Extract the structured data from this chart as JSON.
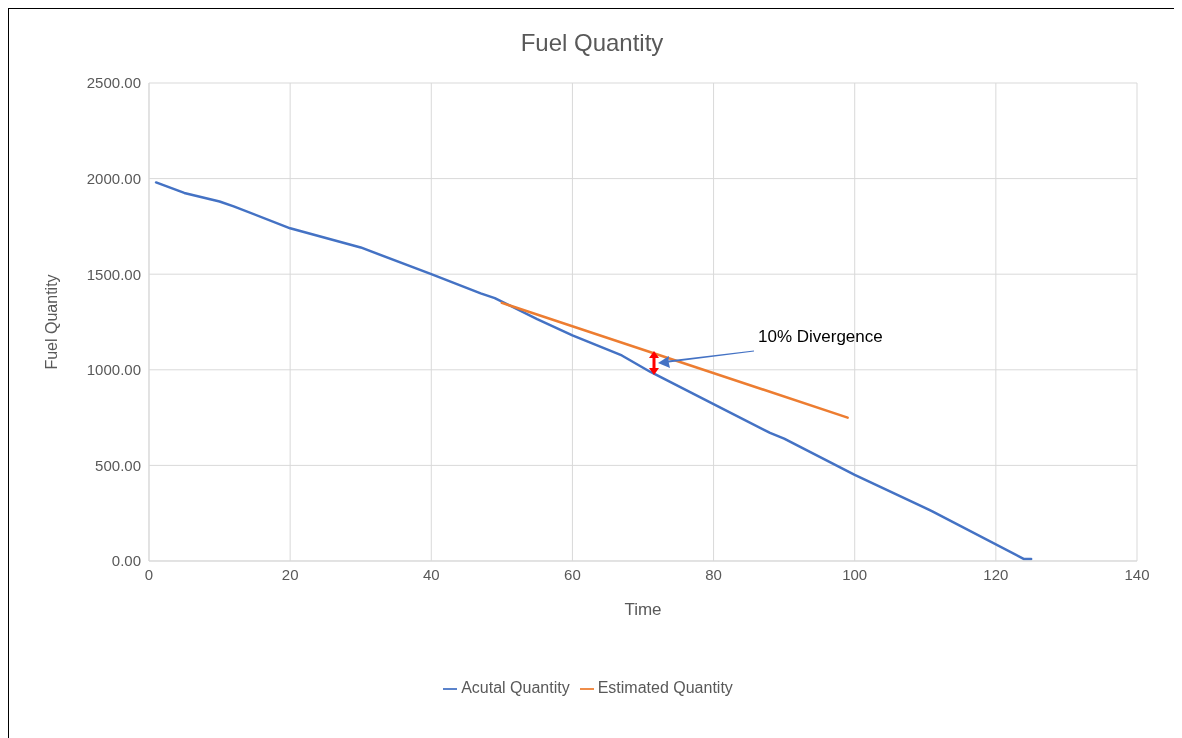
{
  "chart_data": {
    "type": "line",
    "title": "Fuel Quantity",
    "xlabel": "Time",
    "ylabel": "Fuel Quantity",
    "xlim": [
      0,
      140
    ],
    "xticks": [
      0,
      20,
      40,
      60,
      80,
      100,
      120,
      140
    ],
    "ylim": [
      0,
      2500
    ],
    "yticks": [
      {
        "value": 0,
        "label": "0.00"
      },
      {
        "value": 500,
        "label": "500.00"
      },
      {
        "value": 1000,
        "label": "1000.00"
      },
      {
        "value": 1500,
        "label": "1500.00"
      },
      {
        "value": 2000,
        "label": "2000.00"
      },
      {
        "value": 2500,
        "label": "2500.00"
      }
    ],
    "grid": true,
    "legend": "bottom",
    "series": [
      {
        "name": "Acutal Quantity",
        "color": "#4472c4",
        "x": [
          1,
          5,
          10,
          12,
          20,
          30,
          40,
          47,
          49,
          55,
          60,
          67,
          71,
          80,
          88,
          90,
          100,
          111,
          124,
          125
        ],
        "values": [
          1980,
          1925,
          1880,
          1855,
          1740,
          1640,
          1500,
          1400,
          1375,
          1265,
          1180,
          1075,
          990,
          820,
          670,
          640,
          450,
          260,
          10,
          10
        ]
      },
      {
        "name": "Estimated Quantity",
        "color": "#ed7d31",
        "x": [
          50,
          99
        ],
        "values": [
          1350,
          750
        ]
      }
    ],
    "annotations": [
      "10% Divergence"
    ]
  }
}
